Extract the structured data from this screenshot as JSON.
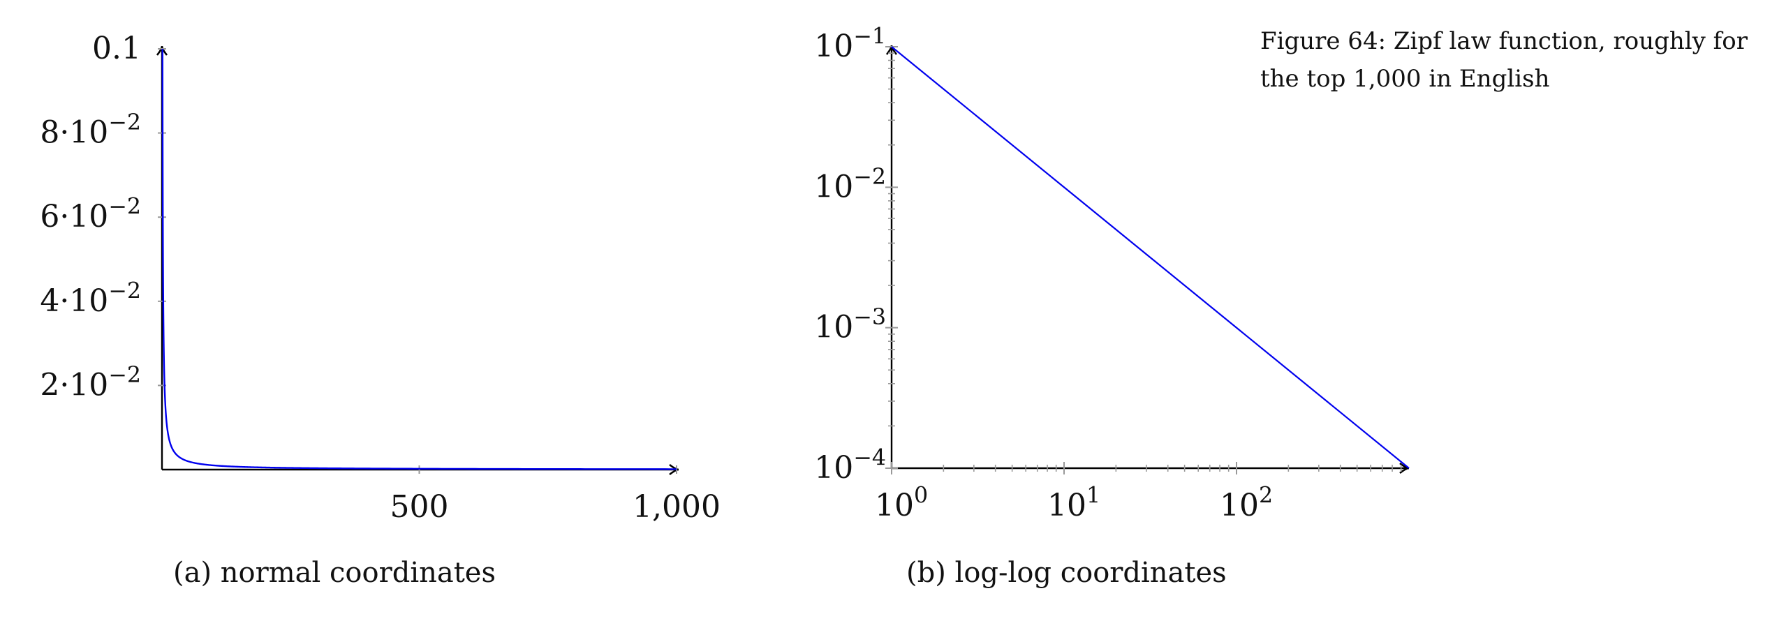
{
  "figure": {
    "caption": "Figure 64: Zipf law function, roughly for the top 1,000 in English"
  },
  "chart_data": [
    {
      "type": "line",
      "subcaption": "(a) normal coordinates",
      "title": "",
      "xlabel": "",
      "ylabel": "",
      "xlim": [
        1,
        1000
      ],
      "ylim": [
        0,
        0.1
      ],
      "xscale": "linear",
      "yscale": "linear",
      "grid": false,
      "x_ticks": [
        {
          "value": 500,
          "label": "500"
        },
        {
          "value": 1000,
          "label": "1,000"
        }
      ],
      "y_ticks": [
        {
          "value": 0.02,
          "mant": "2",
          "exp": "−2"
        },
        {
          "value": 0.04,
          "mant": "4",
          "exp": "−2"
        },
        {
          "value": 0.06,
          "mant": "6",
          "exp": "−2"
        },
        {
          "value": 0.08,
          "mant": "8",
          "exp": "−2"
        },
        {
          "value": 0.1,
          "label": "0.1"
        }
      ],
      "series": [
        {
          "function": "0.1 / x",
          "x_range": [
            1,
            1000
          ],
          "color": "#0000ee"
        }
      ]
    },
    {
      "type": "line",
      "subcaption": "(b) log-log coordinates",
      "title": "",
      "xlabel": "",
      "ylabel": "",
      "xlim": [
        1,
        1000
      ],
      "ylim": [
        0.0001,
        0.1
      ],
      "xscale": "log",
      "yscale": "log",
      "grid": false,
      "x_ticks": [
        {
          "value": 1,
          "base": "10",
          "exp": "0"
        },
        {
          "value": 10,
          "base": "10",
          "exp": "1"
        },
        {
          "value": 100,
          "base": "10",
          "exp": "2"
        }
      ],
      "y_ticks": [
        {
          "value": 0.0001,
          "base": "10",
          "exp": "−4"
        },
        {
          "value": 0.001,
          "base": "10",
          "exp": "−3"
        },
        {
          "value": 0.01,
          "base": "10",
          "exp": "−2"
        },
        {
          "value": 0.1,
          "base": "10",
          "exp": "−1"
        }
      ],
      "series": [
        {
          "function": "0.1 / x",
          "x_range": [
            1,
            1000
          ],
          "color": "#0000ee"
        }
      ]
    }
  ]
}
